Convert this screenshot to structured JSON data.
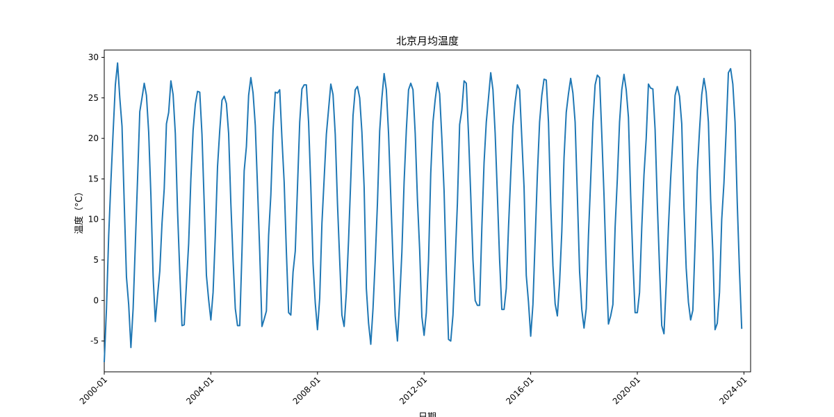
{
  "chart_data": {
    "type": "line",
    "title": "北京月均温度",
    "xlabel": "日期",
    "ylabel": "温度（°C）",
    "x_tick_labels": [
      "2000-01",
      "2004-01",
      "2008-01",
      "2012-01",
      "2016-01",
      "2020-01",
      "2024-01"
    ],
    "y_ticks": [
      -5,
      0,
      5,
      10,
      15,
      20,
      25,
      30
    ],
    "x_start": "2000-01",
    "x_end": "2023-12",
    "xlim": [
      "2000-01",
      "2024-04"
    ],
    "ylim": [
      -8.8,
      30.9
    ],
    "grid": false,
    "line_color": "#1f77b4",
    "series": [
      {
        "values": [
          -7.6,
          -1.0,
          8.0,
          14.7,
          20.8,
          26.6,
          29.3,
          25.0,
          21.5,
          12.0,
          2.9,
          -0.5,
          -5.8,
          -1.0,
          7.0,
          15.0,
          23.3,
          25.0,
          26.8,
          25.3,
          20.8,
          13.0,
          3.0,
          -2.6,
          0.6,
          3.6,
          9.5,
          13.8,
          21.8,
          23.2,
          27.1,
          25.4,
          20.6,
          11.1,
          3.5,
          -3.1,
          -3.0,
          2.0,
          7.0,
          15.0,
          21.0,
          24.2,
          25.8,
          25.7,
          20.5,
          12.0,
          3.1,
          0.1,
          -2.4,
          1.0,
          8.0,
          16.5,
          21.0,
          24.7,
          25.2,
          24.3,
          20.6,
          12.0,
          5.0,
          -1.0,
          -3.1,
          -3.1,
          6.0,
          16.0,
          19.0,
          25.3,
          27.5,
          25.6,
          21.6,
          14.0,
          6.0,
          -3.2,
          -2.3,
          -1.3,
          8.0,
          13.0,
          21.0,
          25.7,
          25.6,
          26.0,
          20.0,
          14.6,
          6.0,
          -1.5,
          -1.8,
          3.5,
          6.1,
          14.0,
          22.0,
          26.1,
          26.6,
          26.6,
          22.0,
          14.0,
          4.6,
          -0.3,
          -3.6,
          0.3,
          9.5,
          15.0,
          20.5,
          23.6,
          26.7,
          25.4,
          20.5,
          12.0,
          5.0,
          -1.8,
          -3.2,
          1.0,
          7.5,
          15.0,
          22.8,
          26.0,
          26.4,
          25.0,
          20.8,
          14.0,
          1.5,
          -2.8,
          -5.4,
          -1.0,
          5.0,
          12.0,
          20.9,
          25.0,
          28.0,
          26.0,
          20.6,
          12.8,
          5.0,
          -1.9,
          -5.0,
          0.0,
          6.0,
          14.6,
          21.0,
          26.0,
          26.8,
          26.0,
          20.6,
          12.5,
          6.3,
          -2.0,
          -4.3,
          -1.5,
          5.0,
          15.7,
          22.0,
          24.8,
          26.9,
          25.5,
          20.0,
          13.5,
          3.5,
          -4.8,
          -5.0,
          -1.8,
          5.0,
          12.0,
          21.7,
          23.5,
          27.1,
          26.8,
          20.5,
          13.0,
          5.0,
          0.0,
          -0.6,
          -0.6,
          9.0,
          17.0,
          22.0,
          25.0,
          28.1,
          26.0,
          20.6,
          13.0,
          5.0,
          -1.1,
          -1.1,
          1.5,
          9.0,
          15.5,
          21.5,
          24.5,
          26.6,
          26.0,
          20.0,
          14.0,
          3.1,
          -0.2,
          -4.4,
          -0.5,
          7.5,
          15.5,
          22.0,
          25.3,
          27.3,
          27.2,
          22.0,
          12.0,
          4.3,
          -0.4,
          -1.9,
          2.2,
          8.5,
          17.6,
          23.2,
          25.5,
          27.4,
          25.6,
          22.0,
          13.0,
          3.6,
          -1.1,
          -3.4,
          -1.0,
          8.0,
          14.9,
          22.0,
          26.6,
          27.8,
          27.5,
          20.5,
          13.0,
          4.0,
          -2.9,
          -1.9,
          -0.5,
          9.0,
          15.0,
          22.0,
          26.0,
          27.9,
          26.0,
          22.6,
          13.0,
          5.0,
          -1.5,
          -1.5,
          1.0,
          9.0,
          15.5,
          20.0,
          26.7,
          26.2,
          26.1,
          21.1,
          12.0,
          4.0,
          -3.1,
          -4.1,
          2.0,
          9.0,
          15.0,
          20.0,
          25.3,
          26.4,
          25.2,
          21.8,
          11.5,
          4.0,
          -0.2,
          -2.4,
          -1.2,
          7.0,
          16.0,
          21.0,
          25.4,
          27.4,
          25.7,
          22.0,
          12.5,
          6.0,
          -3.6,
          -2.8,
          1.0,
          10.0,
          14.5,
          21.0,
          28.1,
          28.6,
          26.7,
          22.0,
          12.0,
          3.6,
          -3.5
        ]
      }
    ]
  }
}
